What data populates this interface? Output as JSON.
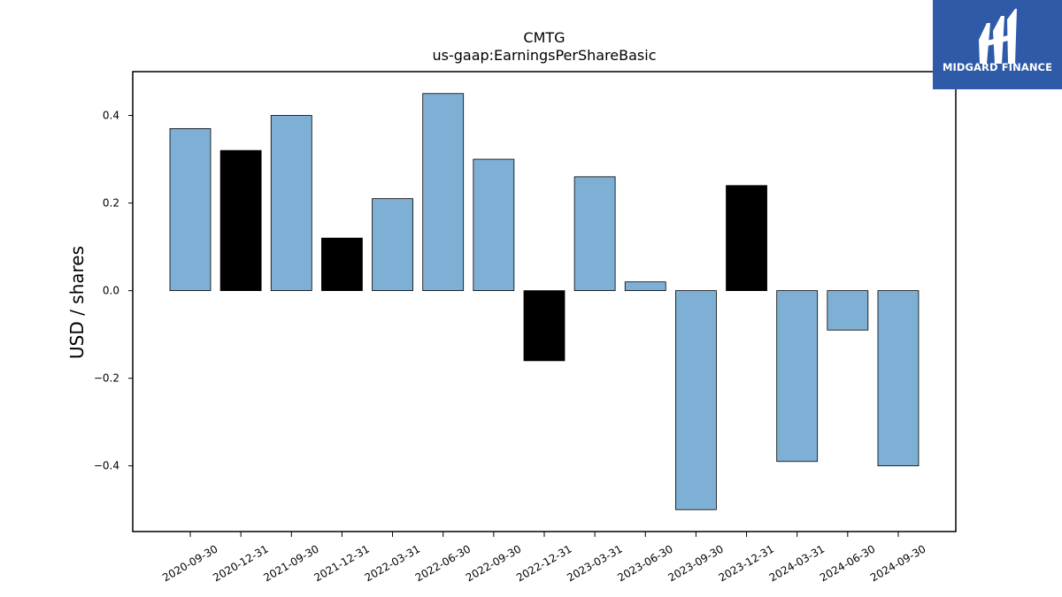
{
  "brand": {
    "name": "MIDGARD FINANCE",
    "color": "#2f5aa8"
  },
  "chart_data": {
    "type": "bar",
    "title": "CMTG",
    "subtitle": "us-gaap:EarningsPerShareBasic",
    "xlabel": "",
    "ylabel": "USD / shares",
    "categories": [
      "2020-09-30",
      "2020-12-31",
      "2021-09-30",
      "2021-12-31",
      "2022-03-31",
      "2022-06-30",
      "2022-09-30",
      "2022-12-31",
      "2023-03-31",
      "2023-06-30",
      "2023-09-30",
      "2023-12-31",
      "2024-03-31",
      "2024-06-30",
      "2024-09-30"
    ],
    "values": [
      0.37,
      0.32,
      0.4,
      0.12,
      0.21,
      0.45,
      0.3,
      -0.16,
      0.26,
      0.02,
      -0.5,
      0.24,
      -0.39,
      -0.09,
      -0.4
    ],
    "bar_colors": [
      "#7eb0d5",
      "#000000",
      "#7eb0d5",
      "#000000",
      "#7eb0d5",
      "#7eb0d5",
      "#7eb0d5",
      "#000000",
      "#7eb0d5",
      "#7eb0d5",
      "#7eb0d5",
      "#000000",
      "#7eb0d5",
      "#7eb0d5",
      "#7eb0d5"
    ],
    "yticks": [
      0.4,
      0.2,
      0.0,
      -0.2,
      -0.4
    ],
    "ytick_labels": [
      "0.4",
      "0.2",
      "0.0",
      "−0.2",
      "−0.4"
    ],
    "ylim": [
      -0.55,
      0.5
    ],
    "grid": false,
    "legend": "none"
  }
}
